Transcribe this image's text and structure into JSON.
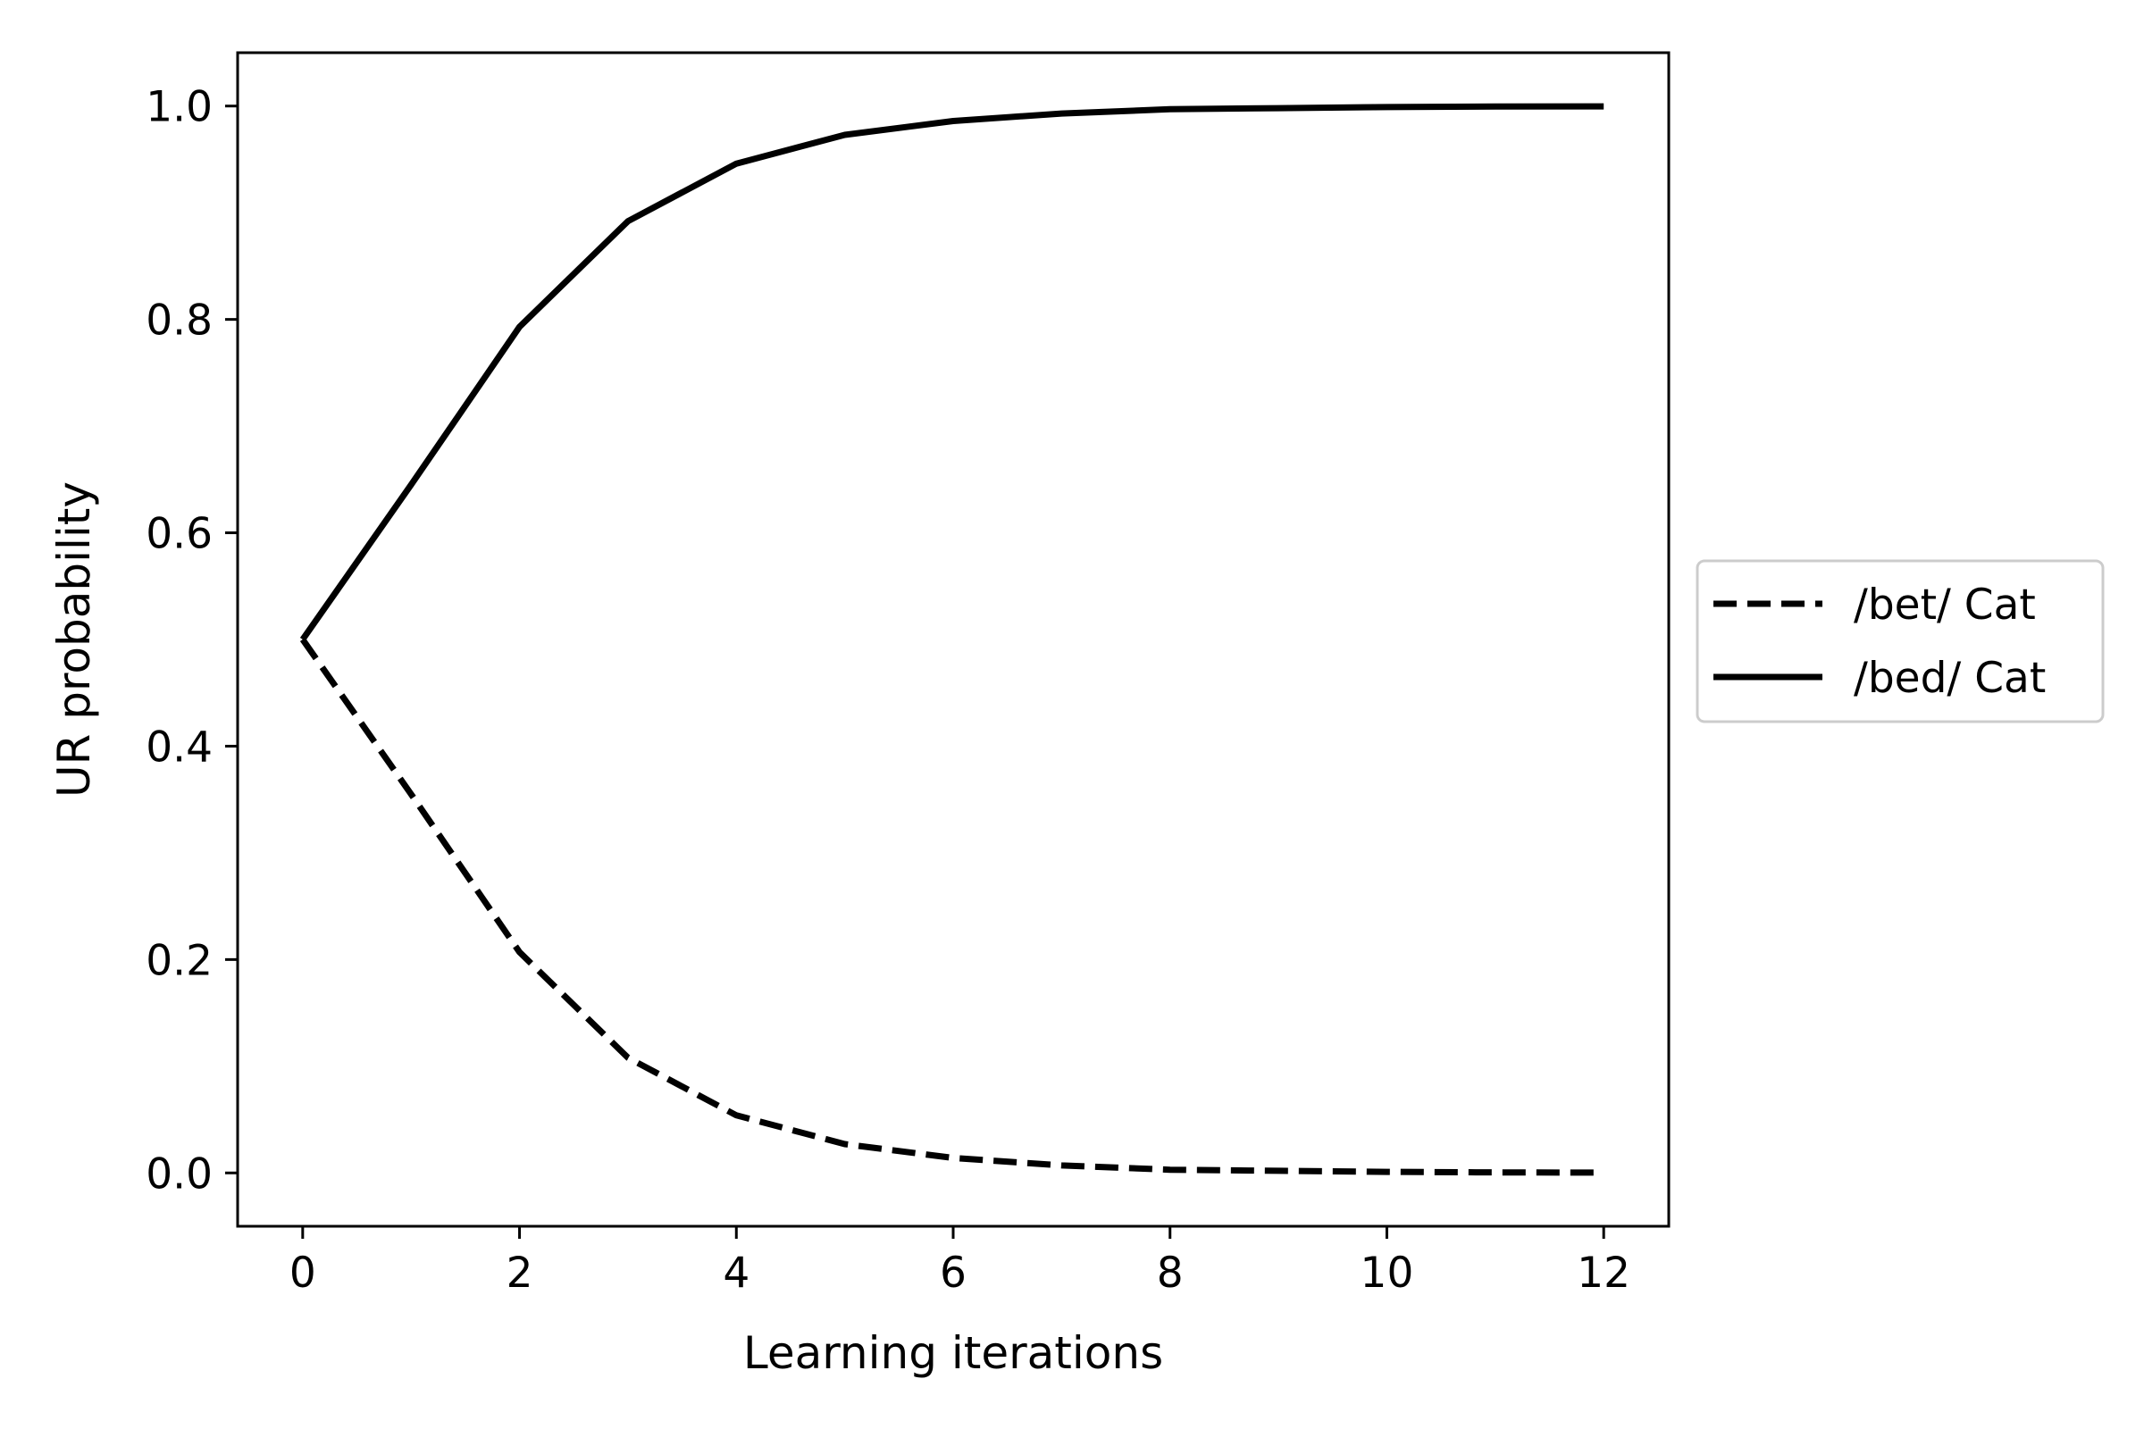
{
  "chart_data": {
    "type": "line",
    "title": "",
    "xlabel": "Learning iterations",
    "ylabel": "UR probability",
    "xlim": [
      -0.6,
      12.6
    ],
    "ylim": [
      -0.05,
      1.05
    ],
    "xticks": [
      0,
      2,
      4,
      6,
      8,
      10,
      12
    ],
    "yticks": [
      0.0,
      0.2,
      0.4,
      0.6,
      0.8,
      1.0
    ],
    "xtick_labels": [
      "0",
      "2",
      "4",
      "6",
      "8",
      "10",
      "12"
    ],
    "ytick_labels": [
      "0.0",
      "0.2",
      "0.4",
      "0.6",
      "0.8",
      "1.0"
    ],
    "grid": false,
    "legend_position": "outside-right",
    "x": [
      0,
      1,
      2,
      3,
      4,
      5,
      6,
      7,
      8,
      9,
      10,
      11,
      12
    ],
    "series": [
      {
        "name": "/bet/ Cat",
        "style": "dashed",
        "color": "#000000",
        "values": [
          0.5,
          0.355,
          0.207,
          0.108,
          0.054,
          0.027,
          0.014,
          0.007,
          0.003,
          0.002,
          0.001,
          0.0005,
          0.0003
        ]
      },
      {
        "name": "/bed/ Cat",
        "style": "solid",
        "color": "#000000",
        "values": [
          0.5,
          0.645,
          0.793,
          0.892,
          0.946,
          0.973,
          0.986,
          0.993,
          0.997,
          0.998,
          0.999,
          0.9995,
          0.9997
        ]
      }
    ]
  }
}
